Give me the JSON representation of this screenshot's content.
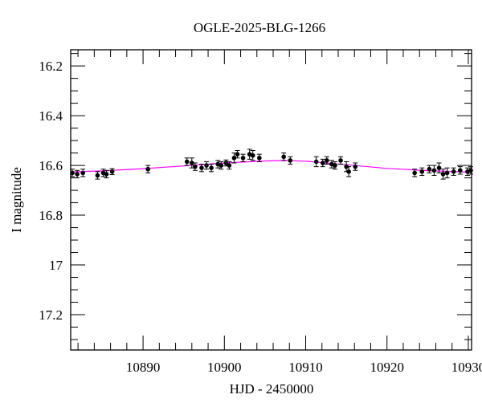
{
  "chart_data": {
    "type": "scatter",
    "title": "OGLE-2025-BLG-1266",
    "xlabel": "HJD - 2450000",
    "ylabel": "I magnitude",
    "xlim": [
      10881.1,
      10930.4
    ],
    "ylim": [
      16.135,
      17.342
    ],
    "y_inverted": true,
    "x_ticks": [
      10890,
      10900,
      10910,
      10920,
      10930
    ],
    "x_tick_labels": [
      "10890",
      "10900",
      "10910",
      "10920",
      "10930"
    ],
    "y_ticks": [
      16.2,
      16.4,
      16.6,
      16.8,
      17,
      17.2
    ],
    "y_tick_labels": [
      "16.2",
      "16.4",
      "16.6",
      "16.8",
      "17",
      "17.2"
    ],
    "grid": false,
    "legend": null,
    "colors": {
      "points": "#000000",
      "model": "#ff00ff",
      "frame": "#000000"
    },
    "series": [
      {
        "name": "OGLE I-band data",
        "kind": "errorbar",
        "x": [
          10881.3,
          10881.9,
          10882.6,
          10884.4,
          10885.1,
          10885.5,
          10886.2,
          10890.6,
          10895.4,
          10896.0,
          10896.4,
          10897.2,
          10897.8,
          10898.4,
          10899.2,
          10899.6,
          10900.2,
          10900.6,
          10901.2,
          10901.6,
          10902.3,
          10903.1,
          10903.5,
          10904.3,
          10907.3,
          10908.1,
          10911.3,
          10912.1,
          10912.6,
          10913.2,
          10913.6,
          10914.3,
          10915.0,
          10915.3,
          10916.1,
          10923.4,
          10924.3,
          10925.2,
          10925.8,
          10926.4,
          10926.9,
          10927.4,
          10928.2,
          10929.0,
          10929.9,
          10930.3
        ],
        "y": [
          16.63,
          16.635,
          16.63,
          16.64,
          16.63,
          16.635,
          16.625,
          16.615,
          16.585,
          16.59,
          16.605,
          16.61,
          16.6,
          16.61,
          16.595,
          16.6,
          16.59,
          16.6,
          16.57,
          16.555,
          16.57,
          16.555,
          16.56,
          16.57,
          16.565,
          16.58,
          16.585,
          16.59,
          16.58,
          16.595,
          16.6,
          16.58,
          16.605,
          16.625,
          16.605,
          16.63,
          16.625,
          16.615,
          16.62,
          16.61,
          16.635,
          16.63,
          16.625,
          16.62,
          16.625,
          16.62
        ],
        "yerr": [
          0.015,
          0.015,
          0.015,
          0.015,
          0.015,
          0.015,
          0.012,
          0.015,
          0.015,
          0.02,
          0.015,
          0.015,
          0.015,
          0.015,
          0.015,
          0.015,
          0.012,
          0.015,
          0.02,
          0.015,
          0.015,
          0.02,
          0.02,
          0.015,
          0.015,
          0.015,
          0.02,
          0.015,
          0.015,
          0.015,
          0.015,
          0.015,
          0.02,
          0.02,
          0.015,
          0.015,
          0.015,
          0.015,
          0.02,
          0.02,
          0.02,
          0.02,
          0.015,
          0.015,
          0.015,
          0.015
        ]
      },
      {
        "name": "Model",
        "kind": "line",
        "x": [
          10881.1,
          10885,
          10890,
          10895,
          10900,
          10905,
          10907.5,
          10910,
          10915,
          10920,
          10925,
          10930.4
        ],
        "y": [
          16.626,
          16.622,
          16.613,
          16.602,
          16.59,
          16.582,
          16.58,
          16.583,
          16.597,
          16.612,
          16.621,
          16.627
        ]
      }
    ]
  }
}
